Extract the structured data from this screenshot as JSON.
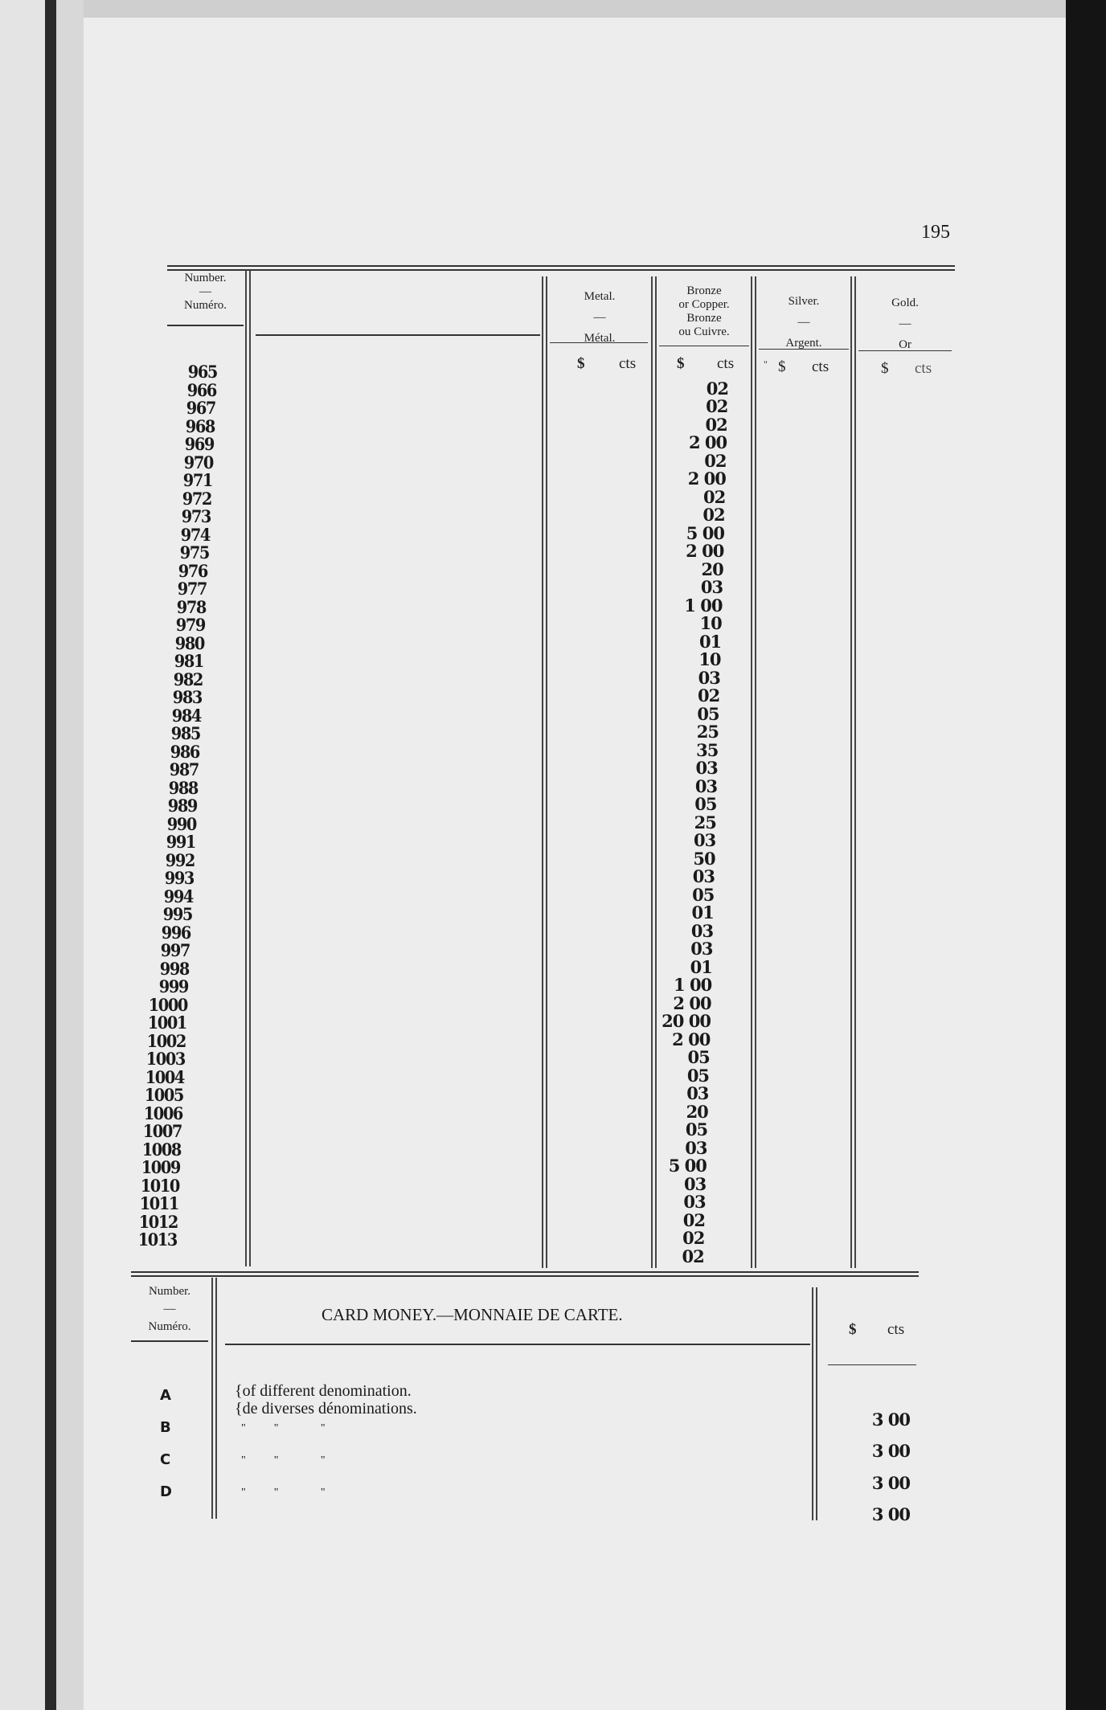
{
  "page_number": "195",
  "coin_table": {
    "headers": {
      "number": [
        "Number.",
        "—",
        "Numéro."
      ],
      "metal": [
        "Metal.",
        "—",
        "Métal."
      ],
      "bronze": [
        "Bronze",
        "or Copper.",
        "Bronze",
        "ou Cuivre."
      ],
      "silver": [
        "Silver.",
        "—",
        "Argent."
      ],
      "gold": [
        "Gold.",
        "—",
        "Or"
      ]
    },
    "units": {
      "dollar": "$",
      "cents": "cts",
      "silver_mark": "\""
    },
    "rows": [
      {
        "number": "965",
        "bronze": "02"
      },
      {
        "number": "966",
        "bronze": "02"
      },
      {
        "number": "967",
        "bronze": "02"
      },
      {
        "number": "968",
        "bronze": "2 00"
      },
      {
        "number": "969",
        "bronze": "02"
      },
      {
        "number": "970",
        "bronze": "2 00"
      },
      {
        "number": "971",
        "bronze": "02"
      },
      {
        "number": "972",
        "bronze": "02"
      },
      {
        "number": "973",
        "bronze": "5 00"
      },
      {
        "number": "974",
        "bronze": "2 00"
      },
      {
        "number": "975",
        "bronze": "20"
      },
      {
        "number": "976",
        "bronze": "03"
      },
      {
        "number": "977",
        "bronze": "1 00"
      },
      {
        "number": "978",
        "bronze": "10"
      },
      {
        "number": "979",
        "bronze": "01"
      },
      {
        "number": "980",
        "bronze": "10"
      },
      {
        "number": "981",
        "bronze": "03"
      },
      {
        "number": "982",
        "bronze": "02"
      },
      {
        "number": "983",
        "bronze": "05"
      },
      {
        "number": "984",
        "bronze": "25"
      },
      {
        "number": "985",
        "bronze": "35"
      },
      {
        "number": "986",
        "bronze": "03"
      },
      {
        "number": "987",
        "bronze": "03"
      },
      {
        "number": "988",
        "bronze": "05"
      },
      {
        "number": "989",
        "bronze": "25"
      },
      {
        "number": "990",
        "bronze": "03"
      },
      {
        "number": "991",
        "bronze": "50"
      },
      {
        "number": "992",
        "bronze": "03"
      },
      {
        "number": "993",
        "bronze": "05"
      },
      {
        "number": "994",
        "bronze": "01"
      },
      {
        "number": "995",
        "bronze": "03"
      },
      {
        "number": "996",
        "bronze": "03"
      },
      {
        "number": "997",
        "bronze": "01"
      },
      {
        "number": "998",
        "bronze": "1 00"
      },
      {
        "number": "999",
        "bronze": "2 00"
      },
      {
        "number": "1000",
        "bronze": "20 00"
      },
      {
        "number": "1001",
        "bronze": "2 00"
      },
      {
        "number": "1002",
        "bronze": "05"
      },
      {
        "number": "1003",
        "bronze": "05"
      },
      {
        "number": "1004",
        "bronze": "03"
      },
      {
        "number": "1005",
        "bronze": "20"
      },
      {
        "number": "1006",
        "bronze": "05"
      },
      {
        "number": "1007",
        "bronze": "03"
      },
      {
        "number": "1008",
        "bronze": "5 00"
      },
      {
        "number": "1009",
        "bronze": "03"
      },
      {
        "number": "1010",
        "bronze": "03"
      },
      {
        "number": "1011",
        "bronze": "02"
      },
      {
        "number": "1012",
        "bronze": "02"
      },
      {
        "number": "1013",
        "bronze": "02"
      }
    ]
  },
  "card_money": {
    "number_header": [
      "Number.",
      "—",
      "Numéro."
    ],
    "title": "CARD MONEY.—MONNAIE DE CARTE.",
    "units": {
      "dollar": "$",
      "cents": "cts"
    },
    "rows": [
      {
        "code": "A",
        "desc": "{of different denomination.\n{de diverses dénominations.",
        "amount": "3 00"
      },
      {
        "code": "B",
        "desc": "\"          \"               \"",
        "amount": "3 00"
      },
      {
        "code": "C",
        "desc": "\"          \"               \"",
        "amount": "3 00"
      },
      {
        "code": "D",
        "desc": "\"          \"               \"",
        "amount": "3 00"
      }
    ]
  }
}
